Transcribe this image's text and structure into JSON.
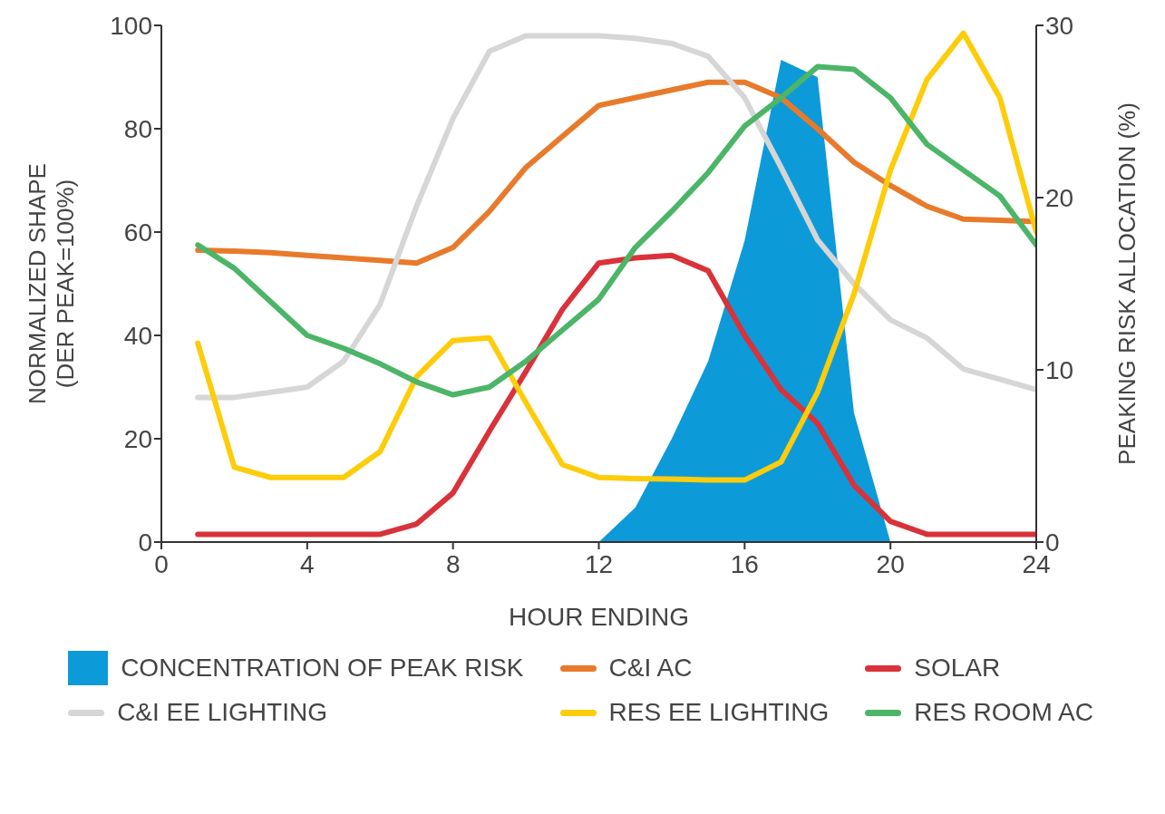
{
  "chart_data": {
    "type": "line",
    "xlabel": "HOUR ENDING",
    "ylabel": "NORMALIZED SHAPE\n(DER PEAK=100%)",
    "y2label": "PEAKING RISK ALLOCATION (%)",
    "x": [
      1,
      2,
      3,
      4,
      5,
      6,
      7,
      8,
      9,
      10,
      11,
      12,
      13,
      14,
      15,
      16,
      17,
      18,
      19,
      20,
      21,
      22,
      23,
      24
    ],
    "xlim": [
      0,
      24
    ],
    "xticks": [
      0,
      4,
      8,
      12,
      16,
      20,
      24
    ],
    "ylim": [
      0,
      100
    ],
    "yticks": [
      0,
      20,
      40,
      60,
      80,
      100
    ],
    "y2lim": [
      0,
      30
    ],
    "y2ticks": [
      0,
      10,
      20,
      30
    ],
    "grid": false,
    "legend": "bottom",
    "marker": "none",
    "line_style": "solid",
    "series": [
      {
        "name": "CONCENTRATION OF PEAK RISK",
        "type": "area",
        "axis": "y2",
        "color": "#0d9ad9",
        "values": [
          null,
          null,
          null,
          null,
          null,
          null,
          null,
          null,
          null,
          null,
          null,
          0,
          2,
          6,
          10.5,
          17.5,
          28,
          27,
          7.5,
          0,
          null,
          null,
          null,
          null
        ]
      },
      {
        "name": "C&I AC",
        "color": "#e87a2b",
        "values": [
          56.5,
          56.3,
          56,
          55.5,
          55,
          54.5,
          54,
          57,
          64,
          72.5,
          78.5,
          84.5,
          86,
          87.5,
          89,
          89,
          86,
          80,
          73.5,
          69,
          65,
          62.5,
          62.3,
          62
        ]
      },
      {
        "name": "SOLAR",
        "color": "#d9323a",
        "values": [
          1.5,
          1.5,
          1.5,
          1.5,
          1.5,
          1.5,
          3.5,
          9.5,
          21.5,
          33,
          45,
          54,
          55,
          55.5,
          52.5,
          40,
          29.5,
          23,
          11,
          4,
          1.5,
          1.5,
          1.5,
          1.5
        ]
      },
      {
        "name": "C&I EE LIGHTING",
        "color": "#d6d6d6",
        "values": [
          28,
          28,
          29,
          30,
          35,
          46,
          65,
          82,
          95,
          98,
          98,
          98,
          97.5,
          96.5,
          94,
          86,
          72.5,
          58.5,
          50,
          43,
          39.5,
          33.5,
          31.5,
          29.5
        ]
      },
      {
        "name": "RES EE LIGHTING",
        "color": "#fdcc0a",
        "values": [
          38.5,
          14.5,
          12.5,
          12.5,
          12.5,
          17.5,
          32,
          39,
          39.5,
          27,
          15,
          12.5,
          12.3,
          12.2,
          12,
          12,
          15.5,
          29,
          48,
          72,
          89.5,
          98.5,
          86,
          60
        ]
      },
      {
        "name": "RES ROOM AC",
        "color": "#4cb567",
        "values": [
          57.5,
          53,
          46.5,
          40,
          37.5,
          34.5,
          31,
          28.5,
          30,
          35,
          41,
          47,
          57,
          64,
          71.5,
          80.5,
          86,
          92,
          91.5,
          86,
          77,
          72,
          67,
          57.5
        ]
      }
    ]
  }
}
